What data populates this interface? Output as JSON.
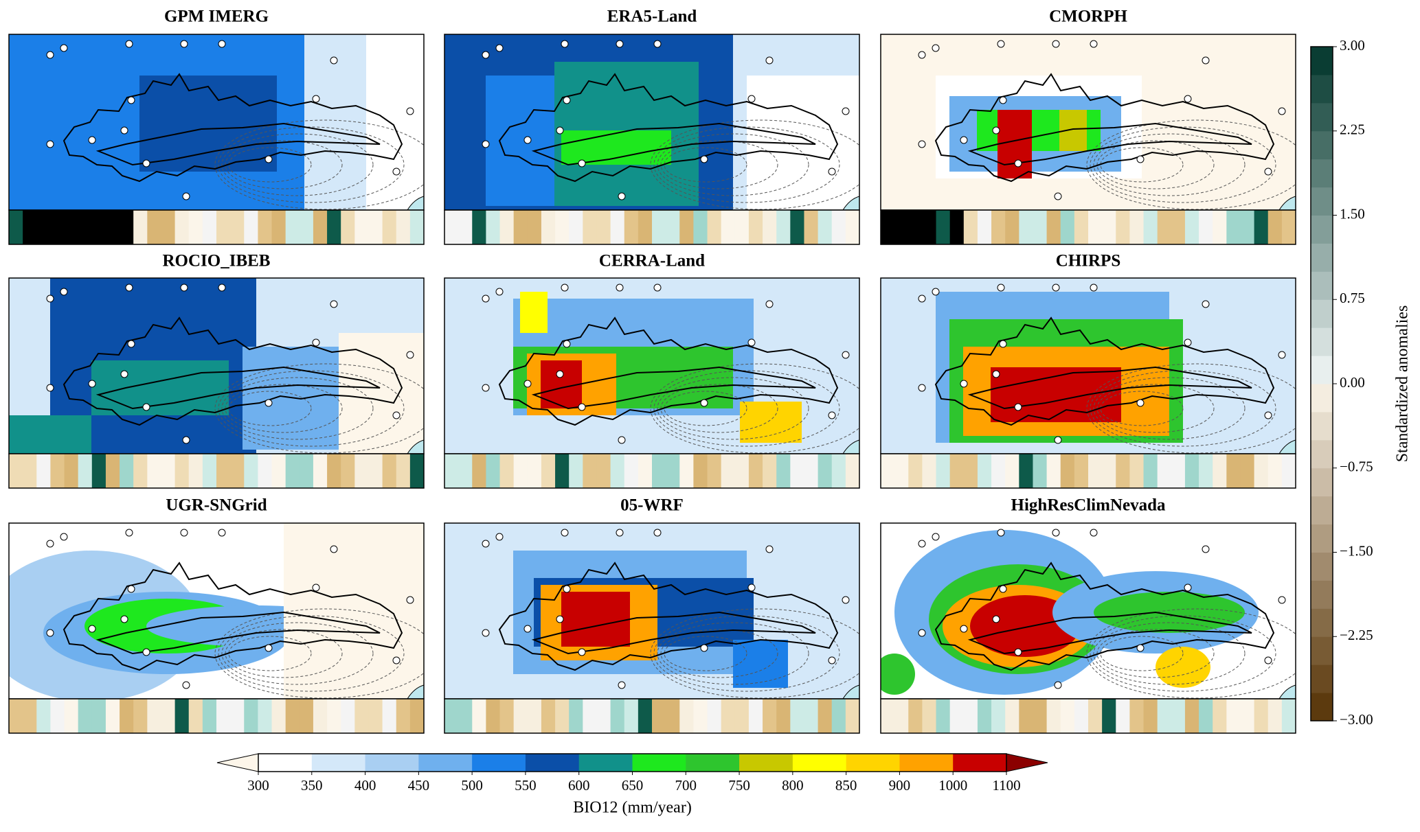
{
  "panels": [
    {
      "title": "GPM IMERG"
    },
    {
      "title": "ERA5-Land"
    },
    {
      "title": "CMORPH"
    },
    {
      "title": "ROCIO_IBEB"
    },
    {
      "title": "CERRA-Land"
    },
    {
      "title": "CHIRPS"
    },
    {
      "title": "UGR-SNGrid"
    },
    {
      "title": "05-WRF"
    },
    {
      "title": "HighResClimNevada"
    }
  ],
  "colorbar": {
    "label": "BIO12 (mm/year)",
    "ticks": [
      300,
      350,
      400,
      450,
      500,
      550,
      600,
      650,
      700,
      750,
      800,
      850,
      900,
      1000,
      1100
    ],
    "colors": [
      "#ffffff",
      "#d4e8f9",
      "#a9cff2",
      "#6fb0ee",
      "#1b7fe8",
      "#0b4fa8",
      "#11918a",
      "#1ee81e",
      "#2ec52e",
      "#c8c800",
      "#ffff00",
      "#ffd400",
      "#ffa200",
      "#c80000"
    ],
    "extend_colors": [
      "#fdf6ea",
      "#8b0000"
    ]
  },
  "anomaly_colorbar": {
    "label": "Standardized anomalies",
    "lim": [
      -3,
      3
    ],
    "ticks": [
      {
        "value": 3,
        "label": "3.00"
      },
      {
        "value": 2.25,
        "label": "2.25"
      },
      {
        "value": 1.5,
        "label": "1.50"
      },
      {
        "value": 0.75,
        "label": "0.75"
      },
      {
        "value": 0,
        "label": "0.00"
      },
      {
        "value": -0.75,
        "label": "−0.75"
      },
      {
        "value": -1.5,
        "label": "−1.50"
      },
      {
        "value": -2.25,
        "label": "−2.25"
      },
      {
        "value": -3,
        "label": "−3.00"
      }
    ]
  }
}
